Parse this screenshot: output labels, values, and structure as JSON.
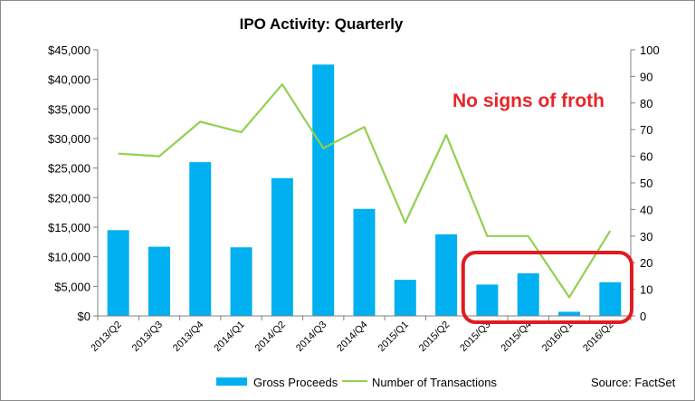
{
  "chart_data": {
    "type": "bar",
    "title": "IPO Activity: Quarterly",
    "categories": [
      "2013/Q2",
      "2013/Q3",
      "2013/Q4",
      "2014/Q1",
      "2014/Q2",
      "2014/Q3",
      "2014/Q4",
      "2015/Q1",
      "2015/Q2",
      "2015/Q3",
      "2015/Q4",
      "2016/Q1",
      "2016/Q2"
    ],
    "series": [
      {
        "name": "Gross Proceeds",
        "type": "bar",
        "axis": "left",
        "color": "#00b0f0",
        "values": [
          14500,
          11700,
          26000,
          11600,
          23300,
          42500,
          18100,
          6100,
          13800,
          5300,
          7200,
          700,
          5700
        ]
      },
      {
        "name": "Number of Transactions",
        "type": "line",
        "axis": "right",
        "color": "#92d050",
        "values": [
          61,
          60,
          73,
          69,
          87,
          63,
          71,
          35,
          68,
          30,
          30,
          7,
          32
        ]
      }
    ],
    "left_axis": {
      "ylim": [
        0,
        45000
      ],
      "ticks": [
        0,
        5000,
        10000,
        15000,
        20000,
        25000,
        30000,
        35000,
        40000,
        45000
      ],
      "tick_labels": [
        "$0",
        "$5,000",
        "$10,000",
        "$15,000",
        "$20,000",
        "$25,000",
        "$30,000",
        "$35,000",
        "$40,000",
        "$45,000"
      ]
    },
    "right_axis": {
      "ylim": [
        0,
        100
      ],
      "ticks": [
        0,
        10,
        20,
        30,
        40,
        50,
        60,
        70,
        80,
        90,
        100
      ],
      "tick_labels": [
        "0",
        "10",
        "20",
        "30",
        "40",
        "50",
        "60",
        "70",
        "80",
        "90",
        "100"
      ]
    },
    "grid": false,
    "legend": "bottom",
    "annotation": {
      "text": "No signs of froth",
      "color": "#e8262a",
      "highlight_categories": [
        "2015/Q3",
        "2015/Q4",
        "2016/Q1",
        "2016/Q2"
      ],
      "highlight_color": "#e11b22"
    },
    "source": "Source: FactSet"
  }
}
